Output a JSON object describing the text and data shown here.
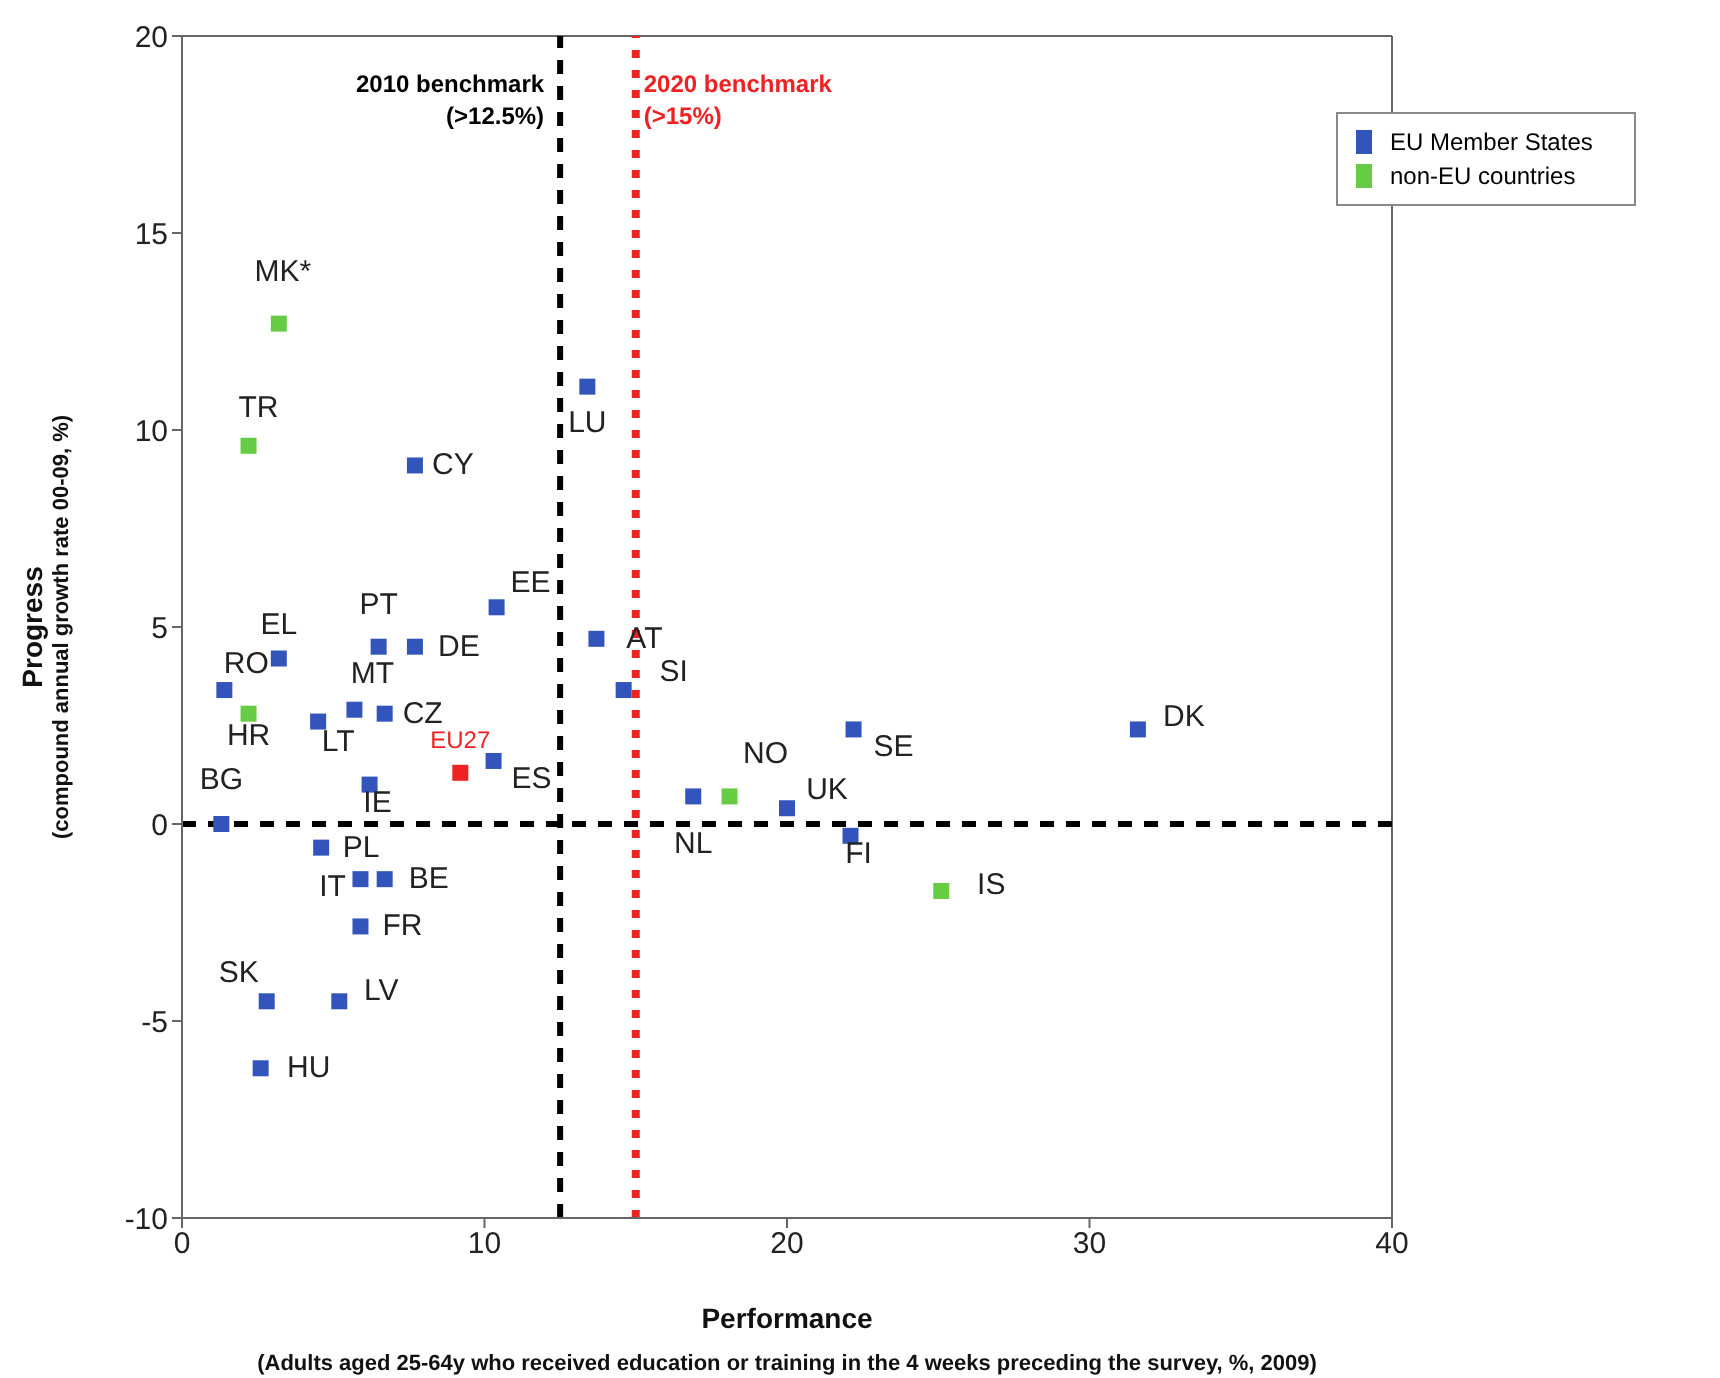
{
  "chart_data": {
    "type": "scatter",
    "xlabel": "Performance\n(Adults aged 25-64y who received education or training in the 4 weeks preceding the survey, %, 2009)",
    "ylabel": "Progress\n(compound annual growth rate 00-09, %)",
    "xlim": [
      0,
      40
    ],
    "xticks": [
      0,
      10,
      20,
      30,
      40
    ],
    "ylim": [
      -10,
      20
    ],
    "yticks": [
      -10,
      -5,
      0,
      5,
      10,
      15,
      20
    ],
    "legend": "top right",
    "marker": "square",
    "series": [
      {
        "name": "EU Member States",
        "color": "#3355bb",
        "x": [
          1.3,
          1.4,
          3.2,
          4.5,
          5.7,
          6.7,
          6.5,
          7.7,
          7.7,
          10.4,
          13.4,
          13.7,
          14.6,
          10.3,
          6.2,
          4.6,
          5.9,
          6.7,
          5.9,
          5.2,
          2.8,
          2.6,
          16.9,
          20.0,
          22.2,
          22.1,
          31.6
        ],
        "values": [
          0,
          3.4,
          4.2,
          2.6,
          2.9,
          2.8,
          4.5,
          4.5,
          9.1,
          5.5,
          11.1,
          4.7,
          3.4,
          1.6,
          1.0,
          -0.6,
          -1.4,
          -1.4,
          -2.6,
          -4.5,
          -4.5,
          -6.2,
          0.7,
          0.4,
          2.4,
          -0.3,
          2.4
        ]
      },
      {
        "name": "non-EU countries",
        "color": "#66cc44",
        "x": [
          3.2,
          2.2,
          2.2,
          18.1,
          25.1
        ],
        "values": [
          12.7,
          9.6,
          2.8,
          0.7,
          -1.7
        ]
      },
      {
        "name": "EU27",
        "color": "#ee2222",
        "x": [
          9.2
        ],
        "values": [
          1.3
        ]
      }
    ],
    "ref_lines": [
      {
        "axis": "x",
        "value": 12.5,
        "label": "2010 benchmark\n(>12.5%)",
        "color": "#000000",
        "line_style": "dashed"
      },
      {
        "axis": "x",
        "value": 15,
        "label": "2020 benchmark\n(>15%)",
        "color": "#ee2222",
        "line_style": "dotted"
      },
      {
        "axis": "y",
        "value": 0,
        "color": "#000000",
        "line_style": "dashed"
      }
    ],
    "annotations": [
      {
        "text": "BG",
        "x": 1.3,
        "y": 0
      },
      {
        "text": "RO",
        "x": 1.4,
        "y": 3.4
      },
      {
        "text": "EL",
        "x": 3.2,
        "y": 4.2
      },
      {
        "text": "LT",
        "x": 4.5,
        "y": 2.6
      },
      {
        "text": "MT",
        "x": 5.7,
        "y": 2.9
      },
      {
        "text": "CZ",
        "x": 6.7,
        "y": 2.8
      },
      {
        "text": "PT",
        "x": 6.5,
        "y": 4.5
      },
      {
        "text": "DE",
        "x": 7.7,
        "y": 4.5
      },
      {
        "text": "CY",
        "x": 7.7,
        "y": 9.1
      },
      {
        "text": "EE",
        "x": 10.4,
        "y": 5.5
      },
      {
        "text": "LU",
        "x": 13.4,
        "y": 11.1
      },
      {
        "text": "AT",
        "x": 13.7,
        "y": 4.7
      },
      {
        "text": "SI",
        "x": 14.6,
        "y": 3.4
      },
      {
        "text": "ES",
        "x": 10.3,
        "y": 1.6
      },
      {
        "text": "IE",
        "x": 6.2,
        "y": 1.0
      },
      {
        "text": "PL",
        "x": 4.6,
        "y": -0.6
      },
      {
        "text": "IT",
        "x": 5.9,
        "y": -1.4
      },
      {
        "text": "BE",
        "x": 6.7,
        "y": -1.4
      },
      {
        "text": "FR",
        "x": 5.9,
        "y": -2.6
      },
      {
        "text": "LV",
        "x": 5.2,
        "y": -4.5
      },
      {
        "text": "SK",
        "x": 2.8,
        "y": -4.5
      },
      {
        "text": "HU",
        "x": 2.6,
        "y": -6.2
      },
      {
        "text": "NL",
        "x": 16.9,
        "y": 0.7
      },
      {
        "text": "UK",
        "x": 20.0,
        "y": 0.4
      },
      {
        "text": "SE",
        "x": 22.2,
        "y": 2.4
      },
      {
        "text": "FI",
        "x": 22.1,
        "y": -0.3
      },
      {
        "text": "DK",
        "x": 31.6,
        "y": 2.4
      },
      {
        "text": "MK*",
        "x": 3.2,
        "y": 12.7
      },
      {
        "text": "TR",
        "x": 2.2,
        "y": 9.6
      },
      {
        "text": "HR",
        "x": 2.2,
        "y": 2.8
      },
      {
        "text": "NO",
        "x": 18.1,
        "y": 0.7
      },
      {
        "text": "IS",
        "x": 25.1,
        "y": -1.7
      }
    ]
  }
}
